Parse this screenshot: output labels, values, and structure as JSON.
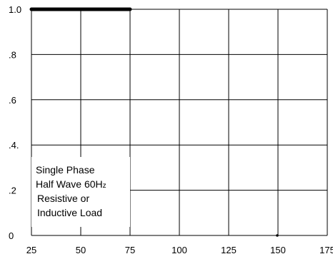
{
  "chart_data": {
    "type": "line",
    "title": "",
    "xlabel": "",
    "ylabel": "",
    "x_ticks": [
      "25",
      "50",
      "75",
      "100",
      "125",
      "150",
      "175"
    ],
    "y_ticks": [
      "0",
      ".2",
      ".4.",
      ".6",
      ".8",
      "1.0"
    ],
    "xlim": [
      25,
      175
    ],
    "ylim": [
      0,
      1.0
    ],
    "grid": true,
    "series": [
      {
        "x": [
          25,
          75
        ],
        "y": [
          1.0,
          1.0
        ]
      },
      {
        "x": [
          150
        ],
        "y": [
          0
        ]
      }
    ],
    "annotation": {
      "lines": [
        "Single Phase",
        "Half Wave 60H",
        "Resistive or",
        "Inductive Load"
      ],
      "subscript": "z"
    }
  }
}
